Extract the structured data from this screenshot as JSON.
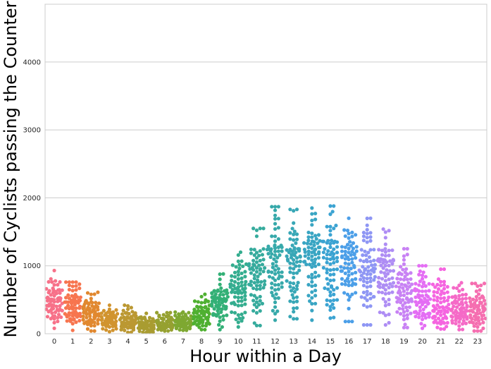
{
  "chart_data": {
    "type": "swarm",
    "xlabel": "Hour within a Day",
    "ylabel": "Number of Cyclists passing the Counter",
    "categories": [
      "0",
      "1",
      "2",
      "3",
      "4",
      "5",
      "6",
      "7",
      "8",
      "9",
      "10",
      "11",
      "12",
      "13",
      "14",
      "15",
      "16",
      "17",
      "18",
      "19",
      "20",
      "21",
      "22",
      "23"
    ],
    "ylim": [
      0,
      4850
    ],
    "yticks": [
      0,
      1000,
      2000,
      3000,
      4000
    ],
    "grid": "y",
    "legend": "none",
    "colors": [
      "#f77189",
      "#f7754f",
      "#e1882f",
      "#d1942f",
      "#bb9832",
      "#a99c31",
      "#96a131",
      "#7ea831",
      "#4fb031",
      "#33b076",
      "#34ad8f",
      "#36ab9d",
      "#37a9aa",
      "#38a7b6",
      "#39a5c3",
      "#3ba3d2",
      "#4c9fe8",
      "#8e96f4",
      "#ae8df4",
      "#c882f4",
      "#e46ef4",
      "#f565e0",
      "#f56ac7",
      "#f56eb0"
    ],
    "series_summary": [
      {
        "hour": "0",
        "low": 80,
        "mid": 450,
        "high": 930
      },
      {
        "hour": "1",
        "low": 50,
        "mid": 380,
        "high": 760
      },
      {
        "hour": "2",
        "low": 40,
        "mid": 300,
        "high": 610
      },
      {
        "hour": "3",
        "low": 30,
        "mid": 230,
        "high": 420
      },
      {
        "hour": "4",
        "low": 20,
        "mid": 170,
        "high": 420
      },
      {
        "hour": "5",
        "low": 20,
        "mid": 130,
        "high": 300
      },
      {
        "hour": "6",
        "low": 40,
        "mid": 140,
        "high": 310
      },
      {
        "hour": "7",
        "low": 50,
        "mid": 170,
        "high": 320
      },
      {
        "hour": "8",
        "low": 60,
        "mid": 270,
        "high": 580
      },
      {
        "hour": "9",
        "low": 60,
        "mid": 480,
        "high": 880
      },
      {
        "hour": "10",
        "low": 100,
        "mid": 650,
        "high": 1200
      },
      {
        "hour": "11",
        "low": 120,
        "mid": 820,
        "high": 1550
      },
      {
        "hour": "12",
        "low": 200,
        "mid": 970,
        "high": 1870
      },
      {
        "hour": "13",
        "low": 220,
        "mid": 1050,
        "high": 1830
      },
      {
        "hour": "14",
        "low": 200,
        "mid": 1100,
        "high": 1850
      },
      {
        "hour": "15",
        "low": 230,
        "mid": 1080,
        "high": 1880
      },
      {
        "hour": "16",
        "low": 180,
        "mid": 1020,
        "high": 1700
      },
      {
        "hour": "17",
        "low": 130,
        "mid": 970,
        "high": 1700
      },
      {
        "hour": "18",
        "low": 130,
        "mid": 840,
        "high": 1540
      },
      {
        "hour": "19",
        "low": 90,
        "mid": 620,
        "high": 1250
      },
      {
        "hour": "20",
        "low": 80,
        "mid": 480,
        "high": 1000
      },
      {
        "hour": "21",
        "low": 70,
        "mid": 420,
        "high": 950
      },
      {
        "hour": "22",
        "low": 60,
        "mid": 360,
        "high": 750
      },
      {
        "hour": "23",
        "low": 40,
        "mid": 330,
        "high": 740
      }
    ]
  }
}
